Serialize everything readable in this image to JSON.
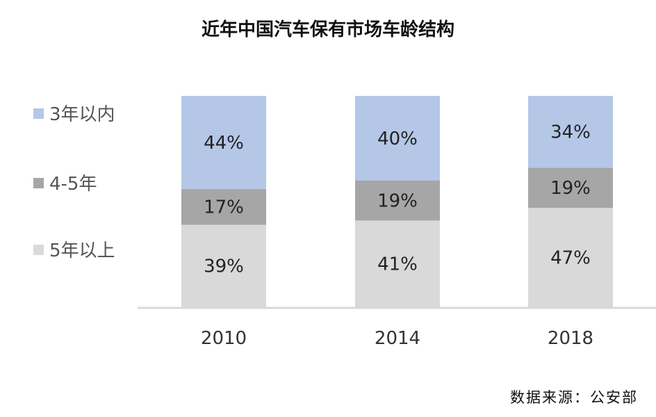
{
  "title": "近年中国汽车保有市场车龄结构",
  "source": "数据来源：公安部",
  "chart_data": {
    "type": "bar",
    "stacked": true,
    "categories": [
      "2010",
      "2014",
      "2018"
    ],
    "series": [
      {
        "name": "5年以上",
        "values": [
          39,
          41,
          47
        ],
        "color": "#d9d9d9",
        "labels": [
          "39%",
          "41%",
          "47%"
        ]
      },
      {
        "name": "4-5年",
        "values": [
          17,
          19,
          19
        ],
        "color": "#a6a6a6",
        "labels": [
          "17%",
          "19%",
          "19%"
        ]
      },
      {
        "name": "3年以内",
        "values": [
          44,
          40,
          34
        ],
        "color": "#b4c7e7",
        "labels": [
          "44%",
          "40%",
          "34%"
        ]
      }
    ],
    "legend": {
      "position": "left",
      "order": [
        "3年以内",
        "4-5年",
        "5年以上"
      ]
    },
    "ylim": [
      0,
      100
    ],
    "grid": false
  }
}
